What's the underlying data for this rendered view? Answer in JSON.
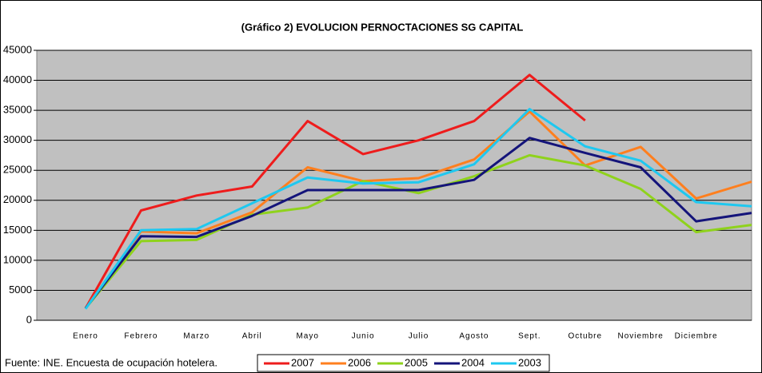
{
  "chart_data": {
    "type": "line",
    "title": "(Gráfico 2) EVOLUCION PERNOCTACIONES SG CAPITAL",
    "source": "Fuente: INE. Encuesta de ocupación hotelera.",
    "categories": [
      "Enero",
      "Febrero",
      "Marzo",
      "Abril",
      "Mayo",
      "Junio",
      "Julio",
      "Agosto",
      "Sept.",
      "Octubre",
      "Noviembre",
      "Diciembre",
      null
    ],
    "series": [
      {
        "name": "2007",
        "color": "#ee1c1c",
        "values": [
          2000,
          18300,
          20800,
          22300,
          33200,
          27700,
          30000,
          33200,
          40900,
          33300,
          null,
          null,
          null
        ]
      },
      {
        "name": "2006",
        "color": "#ff7f1e",
        "values": [
          2000,
          14800,
          14500,
          18000,
          25500,
          23200,
          23700,
          26800,
          34800,
          25800,
          28900,
          20300,
          23100
        ]
      },
      {
        "name": "2005",
        "color": "#8fd21c",
        "values": [
          2000,
          13200,
          13400,
          17600,
          18800,
          23200,
          21200,
          24000,
          27500,
          25800,
          21900,
          14700,
          15900
        ]
      },
      {
        "name": "2004",
        "color": "#14147a",
        "values": [
          2000,
          14000,
          13900,
          17400,
          21700,
          21700,
          21700,
          23400,
          30400,
          27900,
          25500,
          16500,
          17900
        ]
      },
      {
        "name": "2003",
        "color": "#1ec8f0",
        "values": [
          1900,
          15000,
          15200,
          19500,
          23800,
          22800,
          23000,
          26000,
          35200,
          29000,
          26600,
          19700,
          19000
        ]
      }
    ],
    "ylim": [
      0,
      45000
    ],
    "yticks": [
      0,
      5000,
      10000,
      15000,
      20000,
      25000,
      30000,
      35000,
      40000,
      45000
    ],
    "grid": true,
    "legend": "bottom"
  }
}
